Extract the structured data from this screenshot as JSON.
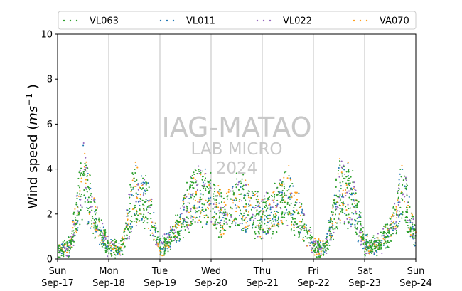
{
  "chart_data": {
    "type": "scatter",
    "ylabel_main": "Wind speed (",
    "ylabel_unit": "ms",
    "ylabel_exp": "−1",
    "ylabel_close": " )",
    "ylim": [
      0,
      10
    ],
    "yticks": [
      0,
      2,
      4,
      6,
      8,
      10
    ],
    "xlim_days": [
      0,
      7
    ],
    "grid": "vertical",
    "legend_position": "top",
    "x_ticks": [
      {
        "day": "Sun",
        "date": "Sep-17"
      },
      {
        "day": "Mon",
        "date": "Sep-18"
      },
      {
        "day": "Tue",
        "date": "Sep-19"
      },
      {
        "day": "Wed",
        "date": "Sep-20"
      },
      {
        "day": "Thu",
        "date": "Sep-21"
      },
      {
        "day": "Fri",
        "date": "Sep-22"
      },
      {
        "day": "Sat",
        "date": "Sep-23"
      },
      {
        "day": "Sun",
        "date": "Sep-24"
      }
    ],
    "series": [
      {
        "name": "VL063",
        "color": "#2ca02c"
      },
      {
        "name": "VL011",
        "color": "#1f77b4"
      },
      {
        "name": "VL022",
        "color": "#9467bd"
      },
      {
        "name": "VA070",
        "color": "#ff9f1c"
      }
    ],
    "envelope": {
      "hours": [
        0,
        6,
        12,
        18,
        24,
        30,
        36,
        42,
        48,
        54,
        60,
        66,
        72,
        78,
        84,
        90,
        96,
        102,
        108,
        114,
        120,
        126,
        132,
        138,
        144,
        150,
        156,
        162,
        168
      ],
      "wind_speed": [
        0.4,
        0.6,
        3.5,
        1.7,
        0.5,
        0.5,
        3.0,
        2.5,
        0.5,
        1.0,
        2.2,
        3.0,
        2.6,
        1.8,
        2.7,
        2.2,
        1.8,
        2.2,
        2.8,
        1.8,
        0.5,
        0.5,
        3.0,
        2.8,
        0.6,
        0.6,
        1.2,
        3.0,
        0.8
      ]
    }
  },
  "watermark": {
    "line1": "IAG-MATAO",
    "line2": "LAB MICRO",
    "line3": "2024"
  }
}
